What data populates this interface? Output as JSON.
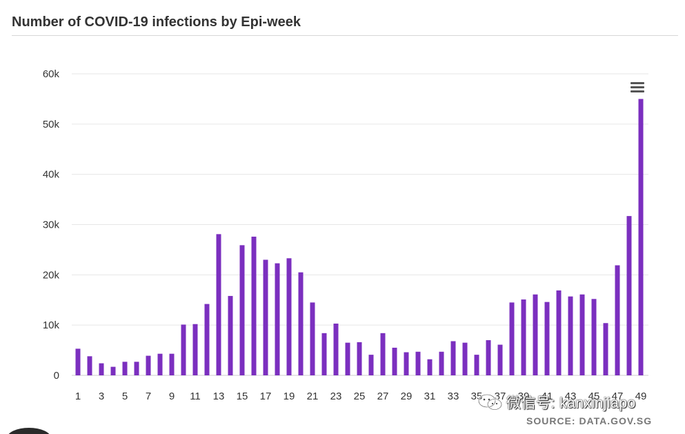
{
  "header": {
    "title": "Number of COVID-19 infections by Epi-week"
  },
  "footer": {
    "source": "SOURCE: DATA.GOV.SG",
    "watermark": "微信号: kanxinjiapo"
  },
  "icons": {
    "menu": "hamburger-menu-icon",
    "watermark": "wechat-icon"
  },
  "colors": {
    "bar": "#7b2fbf",
    "grid": "#e6e6e6",
    "axis_text": "#333333",
    "title": "#333333"
  },
  "chart_data": {
    "type": "bar",
    "title": "Number of COVID-19 infections by Epi-week",
    "xlabel": "",
    "ylabel": "",
    "ylim": [
      0,
      60000
    ],
    "yticks": [
      0,
      10000,
      20000,
      30000,
      40000,
      50000,
      60000
    ],
    "ytick_labels": [
      "0",
      "10k",
      "20k",
      "30k",
      "40k",
      "50k",
      "60k"
    ],
    "xtick_labels_shown": [
      "1",
      "3",
      "5",
      "7",
      "9",
      "11",
      "13",
      "15",
      "17",
      "19",
      "21",
      "23",
      "25",
      "27",
      "29",
      "31",
      "33",
      "35",
      "37",
      "39",
      "41",
      "43",
      "45",
      "47",
      "49"
    ],
    "grid": true,
    "legend": "none",
    "categories": [
      1,
      2,
      3,
      4,
      5,
      6,
      7,
      8,
      9,
      10,
      11,
      12,
      13,
      14,
      15,
      16,
      17,
      18,
      19,
      20,
      21,
      22,
      23,
      24,
      25,
      26,
      27,
      28,
      29,
      30,
      31,
      32,
      33,
      34,
      35,
      36,
      37,
      38,
      39,
      40,
      41,
      42,
      43,
      44,
      45,
      46,
      47,
      48,
      49
    ],
    "values": [
      5300,
      3800,
      2400,
      1700,
      2700,
      2700,
      3900,
      4300,
      4300,
      10100,
      10200,
      14200,
      28100,
      15800,
      25900,
      27600,
      23000,
      22300,
      23300,
      20500,
      14500,
      8400,
      10300,
      6500,
      6600,
      4100,
      8400,
      5500,
      4600,
      4700,
      3200,
      4700,
      6800,
      6500,
      4100,
      7000,
      6100,
      14500,
      15100,
      16100,
      14600,
      16900,
      15700,
      16100,
      15200,
      10400,
      21900,
      31700,
      55000
    ]
  }
}
